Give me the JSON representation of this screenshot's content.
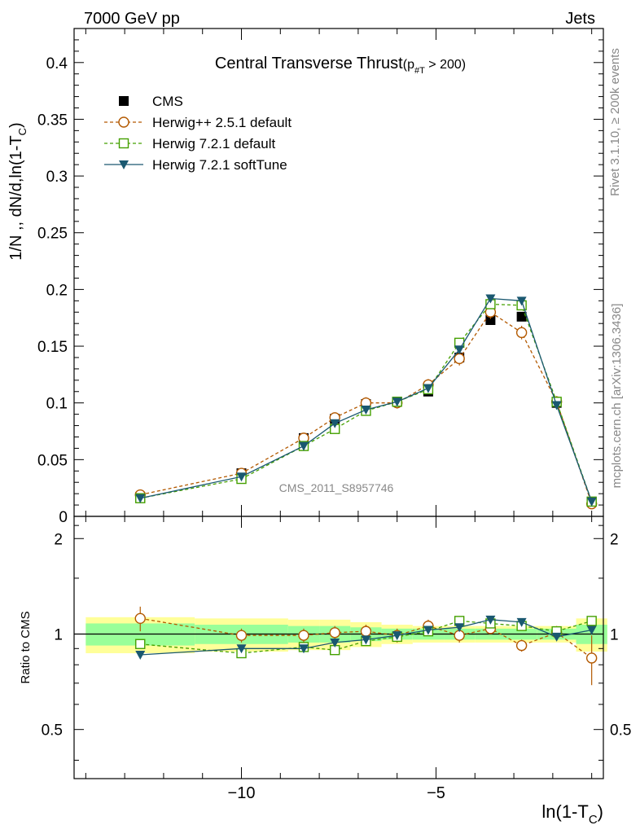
{
  "header": {
    "left": "7000 GeV pp",
    "right": "Jets"
  },
  "side": {
    "rivet": "Rivet 3.1.10, ≥ 200k events",
    "mcplots": "mcplots.cern.ch [arXiv:1306.3436]"
  },
  "chart_data": {
    "type": "line",
    "title": "Central Transverse Thrust",
    "title_suffix": "(p",
    "title_sub": "#T",
    "title_tail": " > 200)",
    "analysis_label": "CMS_2011_S8957746",
    "ylabel": "1/N ,, dN/d,ln(1-T",
    "ylabel_sub": "C",
    "ylabel_tail": ")",
    "xlabel": "ln(1-T",
    "xlabel_sub": "C",
    "xlabel_tail": ")",
    "ratio_ylabel": "Ratio to CMS",
    "xlim": [
      -14.3,
      -0.7
    ],
    "ylim": [
      0,
      0.43
    ],
    "ratio_ylim": [
      0.35,
      2.35
    ],
    "ratio_log": true,
    "x_ticks": [
      -10,
      -5
    ],
    "x_tick_labels": [
      "−10",
      "−5"
    ],
    "y_ticks": [
      0,
      0.05,
      0.1,
      0.15,
      0.2,
      0.25,
      0.3,
      0.35,
      0.4
    ],
    "y_tick_labels": [
      "0",
      "0.05",
      "0.1",
      "0.15",
      "0.2",
      "0.25",
      "0.3",
      "0.35",
      "0.4"
    ],
    "ratio_ticks": [
      0.5,
      1,
      2
    ],
    "ratio_tick_labels": [
      "0.5",
      "1",
      "2"
    ],
    "x": [
      -12.6,
      -10.0,
      -8.4,
      -7.6,
      -6.8,
      -6.0,
      -5.2,
      -4.4,
      -3.6,
      -2.8,
      -1.9,
      -1.0
    ],
    "bin_edges": [
      -14.0,
      -11.2,
      -8.8,
      -8.0,
      -7.2,
      -6.4,
      -5.6,
      -4.8,
      -4.0,
      -3.2,
      -2.4,
      -1.4,
      -0.6
    ],
    "band_yellow": [
      0.13,
      0.12,
      0.11,
      0.11,
      0.09,
      0.07,
      0.06,
      0.06,
      0.06,
      0.06,
      0.06,
      0.12
    ],
    "band_green": [
      0.08,
      0.07,
      0.06,
      0.06,
      0.05,
      0.04,
      0.04,
      0.04,
      0.04,
      0.04,
      0.04,
      0.07
    ],
    "legend_position": "top-left",
    "series": [
      {
        "name": "CMS",
        "color": "#000000",
        "marker": "square-filled",
        "line": "none",
        "values": [
          0.017,
          0.038,
          0.069,
          0.086,
          0.099,
          0.101,
          0.11,
          0.14,
          0.173,
          0.176,
          0.1,
          0.013
        ],
        "ratio": [
          1,
          1,
          1,
          1,
          1,
          1,
          1,
          1,
          1,
          1,
          1,
          1
        ]
      },
      {
        "name": "Herwig++ 2.5.1 default",
        "color": "#b35900",
        "marker": "circle-open",
        "line": "dashed",
        "values": [
          0.019,
          0.038,
          0.069,
          0.087,
          0.1,
          0.1,
          0.116,
          0.139,
          0.18,
          0.162,
          0.101,
          0.011
        ],
        "errors": [
          0.002,
          0.002,
          0.003,
          0.004,
          0.005,
          0.005,
          0.005,
          0.006,
          0.006,
          0.006,
          0.005,
          0.002
        ],
        "ratio": [
          1.12,
          0.99,
          0.99,
          1.01,
          1.02,
          0.99,
          1.06,
          0.99,
          1.04,
          0.92,
          1.01,
          0.84
        ],
        "ratio_err": [
          0.1,
          0.05,
          0.05,
          0.05,
          0.05,
          0.05,
          0.05,
          0.05,
          0.04,
          0.04,
          0.05,
          0.15
        ]
      },
      {
        "name": "Herwig 7.2.1 default",
        "color": "#44a000",
        "marker": "square-open",
        "line": "dashed",
        "values": [
          0.016,
          0.033,
          0.062,
          0.077,
          0.093,
          0.101,
          0.112,
          0.153,
          0.187,
          0.186,
          0.101,
          0.013
        ],
        "ratio": [
          0.93,
          0.87,
          0.91,
          0.89,
          0.95,
          0.98,
          1.02,
          1.1,
          1.08,
          1.06,
          1.02,
          1.1
        ]
      },
      {
        "name": "Herwig 7.2.1 softTune",
        "color": "#1a5870",
        "marker": "triangle-down-filled",
        "line": "solid",
        "values": [
          0.016,
          0.035,
          0.062,
          0.082,
          0.094,
          0.101,
          0.113,
          0.147,
          0.192,
          0.19,
          0.098,
          0.013
        ],
        "ratio": [
          0.86,
          0.9,
          0.9,
          0.94,
          0.96,
          0.99,
          1.03,
          1.05,
          1.11,
          1.09,
          0.98,
          1.03
        ]
      }
    ]
  }
}
